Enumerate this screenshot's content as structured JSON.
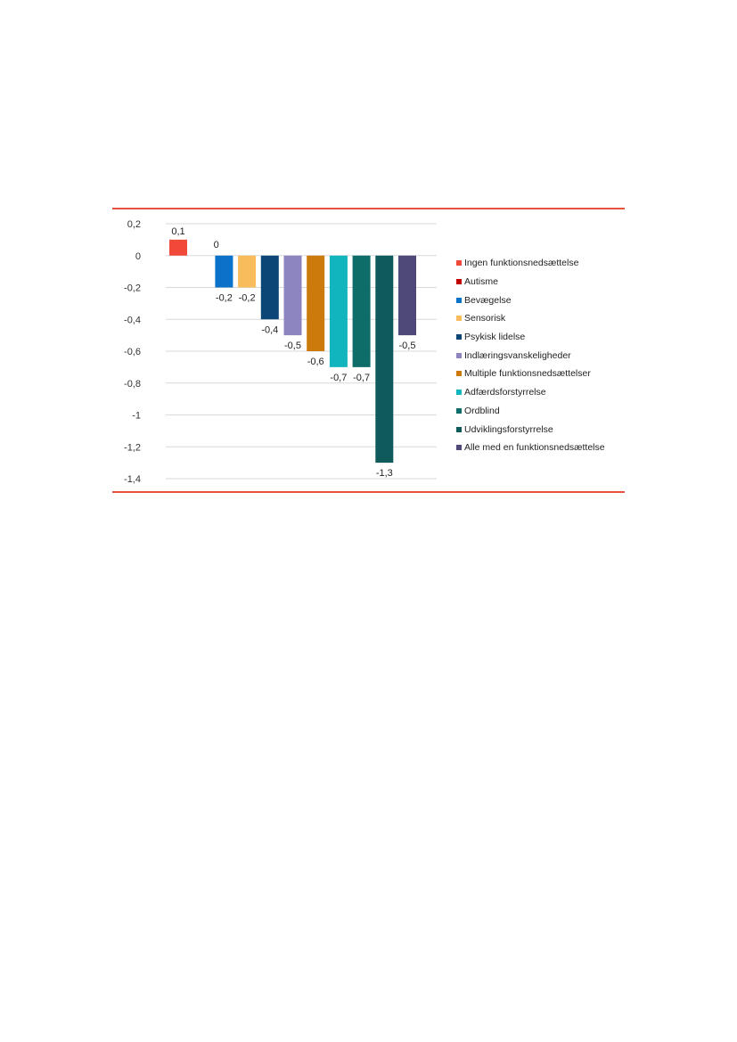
{
  "chart_data": {
    "type": "bar",
    "title": "",
    "xlabel": "",
    "ylabel": "",
    "ylim": [
      -1.4,
      0.2
    ],
    "yticks": [
      0.2,
      0,
      -0.2,
      -0.4,
      -0.6,
      -0.8,
      -1,
      -1.2,
      -1.4
    ],
    "ytick_labels": [
      "0,2",
      "0",
      "-0,2",
      "-0,4",
      "-0,6",
      "-0,8",
      "-1",
      "-1,2",
      "-1,4"
    ],
    "grid": true,
    "legend_position": "right",
    "series": [
      {
        "name": "Ingen funktionsnedsættelse",
        "value": 0.1,
        "label": "0,1",
        "color": "#f0493a"
      },
      {
        "name": "Autisme",
        "value": 0,
        "label": "0",
        "color": "#c00000"
      },
      {
        "name": "Bevægelse",
        "value": -0.2,
        "label": "-0,2",
        "color": "#0a72c9"
      },
      {
        "name": "Sensorisk",
        "value": -0.2,
        "label": "-0,2",
        "color": "#f9bc5c"
      },
      {
        "name": "Psykisk lidelse",
        "value": -0.4,
        "label": "-0,4",
        "color": "#0b4677"
      },
      {
        "name": "Indlæringsvanskeligheder",
        "value": -0.5,
        "label": "-0,5",
        "color": "#8c85bf"
      },
      {
        "name": "Multiple funktionsnedsættelser",
        "value": -0.6,
        "label": "-0,6",
        "color": "#cc7a0b"
      },
      {
        "name": "Adfærdsforstyrrelse",
        "value": -0.7,
        "label": "-0,7",
        "color": "#11b5bd"
      },
      {
        "name": "Ordblind",
        "value": -0.7,
        "label": "-0,7",
        "color": "#0e6c69"
      },
      {
        "name": "Udviklingsforstyrrelse",
        "value": -1.3,
        "label": "-1,3",
        "color": "#0f5a5b"
      },
      {
        "name": "Alle med en funktionsnedsættelse",
        "value": -0.5,
        "label": "-0,5",
        "color": "#4f4979"
      }
    ]
  }
}
